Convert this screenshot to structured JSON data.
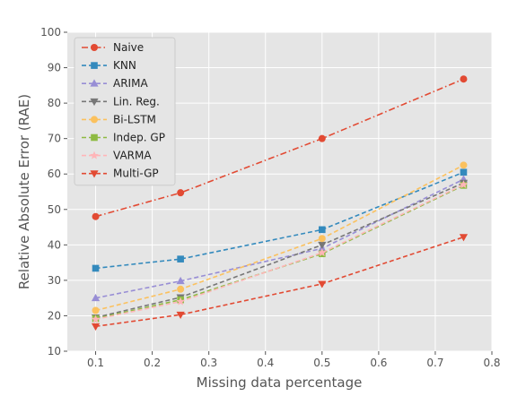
{
  "chart_data": {
    "type": "line",
    "title": "",
    "xlabel": "Missing data percentage",
    "ylabel": "Relative Absolute Error (RAE)",
    "xlim": [
      0.05,
      0.8
    ],
    "ylim": [
      10,
      100
    ],
    "xticks": [
      "0.1",
      "0.2",
      "0.3",
      "0.4",
      "0.5",
      "0.6",
      "0.7",
      "0.8"
    ],
    "yticks": [
      "10",
      "20",
      "30",
      "40",
      "50",
      "60",
      "70",
      "80",
      "90",
      "100"
    ],
    "grid": true,
    "legend_position": "top-left",
    "x": [
      0.1,
      0.25,
      0.5,
      0.75
    ],
    "series": [
      {
        "name": "Naive",
        "values": [
          48.0,
          54.7,
          70.0,
          86.8
        ],
        "color": "#e24a33",
        "marker": "circle",
        "dash": "dashdot"
      },
      {
        "name": "KNN",
        "values": [
          33.4,
          36.0,
          44.3,
          60.5
        ],
        "color": "#348abd",
        "marker": "square",
        "dash": "dashed"
      },
      {
        "name": "ARIMA",
        "values": [
          25.0,
          29.8,
          39.0,
          58.5
        ],
        "color": "#988ed5",
        "marker": "triangle-up",
        "dash": "dashed"
      },
      {
        "name": "Lin. Reg.",
        "values": [
          19.5,
          25.2,
          40.0,
          57.5
        ],
        "color": "#777777",
        "marker": "triangle-down",
        "dash": "dashed"
      },
      {
        "name": "Bi-LSTM",
        "values": [
          21.5,
          27.5,
          41.8,
          62.5
        ],
        "color": "#fbc15e",
        "marker": "circle",
        "dash": "dashed"
      },
      {
        "name": "Indep. GP",
        "values": [
          19.2,
          24.5,
          37.5,
          56.8
        ],
        "color": "#8eba42",
        "marker": "square",
        "dash": "dashed"
      },
      {
        "name": "VARMA",
        "values": [
          19.0,
          24.0,
          37.8,
          57.0
        ],
        "color": "#ffb5b8",
        "marker": "star",
        "dash": "dashed"
      },
      {
        "name": "Multi-GP",
        "values": [
          17.0,
          20.3,
          29.0,
          42.2
        ],
        "color": "#e24a33",
        "marker": "triangle-down",
        "dash": "dashed"
      }
    ]
  }
}
